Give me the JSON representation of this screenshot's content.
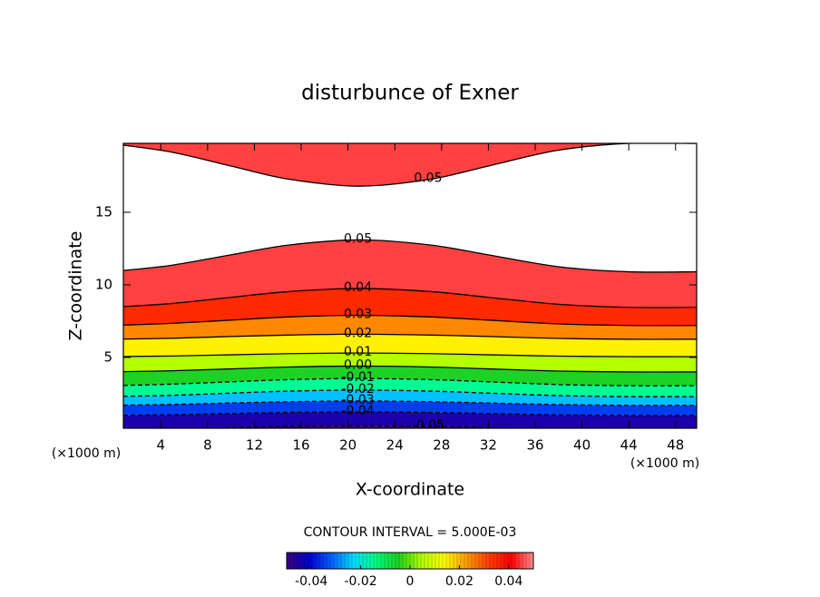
{
  "chart_data": {
    "type": "contour",
    "title": "disturbunce of Exner",
    "x_label": "X-coordinate",
    "y_label": "Z-coordinate",
    "unit_label": "(×1000 m)",
    "xlim": [
      0.8,
      49.8
    ],
    "ylim": [
      0.12,
      19.75
    ],
    "xticks": [
      4,
      8,
      12,
      16,
      20,
      24,
      28,
      32,
      36,
      40,
      44,
      48
    ],
    "yticks": [
      5,
      10,
      15
    ],
    "contour_x": [
      0.8,
      5,
      10,
      15,
      21,
      27,
      32,
      38,
      44,
      49.8
    ],
    "contours": [
      {
        "level": -0.05,
        "label": "-0.05",
        "y": [
          0.01,
          0.06,
          0.16,
          0.25,
          0.3,
          0.25,
          0.16,
          0.05,
          0,
          0
        ]
      },
      {
        "level": -0.04,
        "label": "-0.04",
        "y": [
          1.01,
          1.05,
          1.13,
          1.21,
          1.25,
          1.21,
          1.13,
          1.04,
          1.0,
          1.0
        ]
      },
      {
        "level": -0.03,
        "label": "-0.03",
        "y": [
          1.71,
          1.76,
          1.86,
          1.95,
          2.0,
          1.95,
          1.86,
          1.75,
          1.7,
          1.7
        ]
      },
      {
        "level": -0.02,
        "label": "-0.02",
        "y": [
          2.32,
          2.39,
          2.54,
          2.68,
          2.75,
          2.68,
          2.54,
          2.37,
          2.3,
          2.3
        ]
      },
      {
        "level": -0.01,
        "label": "-0.01",
        "y": [
          3.07,
          3.16,
          3.32,
          3.47,
          3.55,
          3.47,
          3.32,
          3.13,
          3.05,
          3.05
        ]
      },
      {
        "level": 0,
        "label": "0.00",
        "y": [
          4.02,
          4.08,
          4.21,
          4.34,
          4.4,
          4.34,
          4.21,
          4.06,
          4.0,
          4.0
        ]
      },
      {
        "level": 0.01,
        "label": "0.01",
        "y": [
          5.06,
          5.1,
          5.18,
          5.26,
          5.3,
          5.26,
          5.18,
          5.09,
          5.05,
          5.05
        ]
      },
      {
        "level": 0.02,
        "label": "0.02",
        "y": [
          6.26,
          6.32,
          6.44,
          6.54,
          6.6,
          6.54,
          6.44,
          6.31,
          6.25,
          6.25
        ]
      },
      {
        "level": 0.03,
        "label": "0.03",
        "y": [
          7.23,
          7.35,
          7.57,
          7.79,
          7.9,
          7.79,
          7.57,
          7.31,
          7.2,
          7.2
        ]
      },
      {
        "level": 0.04,
        "label": "0.04",
        "y": [
          8.5,
          8.72,
          9.14,
          9.54,
          9.75,
          9.54,
          9.14,
          8.66,
          8.45,
          8.45
        ]
      },
      {
        "level": 0.05,
        "label": "0.05",
        "y": [
          10.99,
          11.36,
          12.07,
          12.75,
          13.1,
          12.75,
          12.07,
          11.25,
          10.9,
          10.9
        ]
      }
    ],
    "upper_contour": {
      "level": 0.05,
      "label": "0.05",
      "y": [
        19.63,
        19.13,
        18.19,
        17.27,
        16.8,
        17.27,
        18.19,
        19.28,
        19.75,
        19.75
      ]
    },
    "contour_interval": 0.005,
    "contour_interval_label": "CONTOUR INTERVAL = 5.000E-03",
    "clim": [
      -0.05,
      0.05
    ],
    "cticks": [
      -0.04,
      -0.02,
      0,
      0.02,
      0.04
    ],
    "colormap": [
      "#3c0080",
      "#0000d0",
      "#0060ff",
      "#00e0ff",
      "#00ff80",
      "#20d020",
      "#b0ff00",
      "#ffff00",
      "#ffa000",
      "#ff4000",
      "#ff0000",
      "#ff9090"
    ]
  }
}
